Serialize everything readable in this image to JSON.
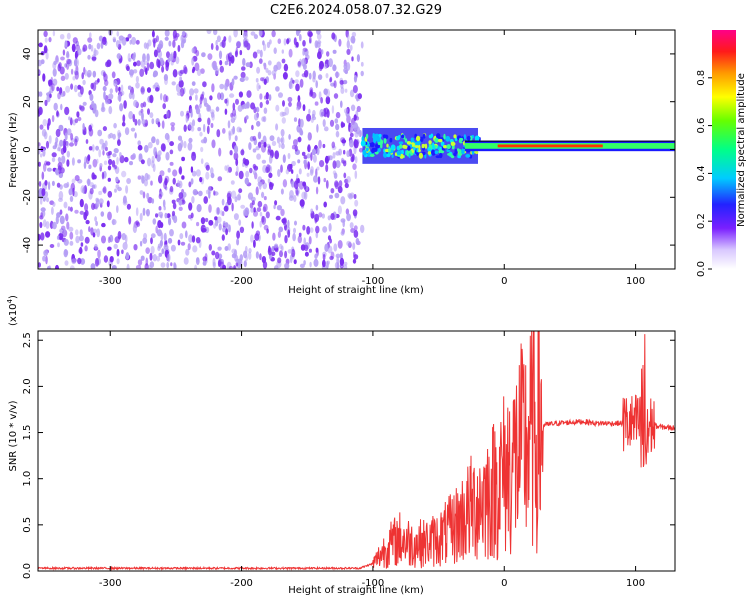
{
  "title": "C2E6.2024.058.07.32.G29",
  "colors": {
    "spectrum_sparse": "#b39cf5",
    "spectrum_dense": "#7a2df0",
    "snr_line": "#ee3333"
  },
  "chart_data": [
    {
      "type": "heatmap",
      "title": "C2E6.2024.058.07.32.G29",
      "xlabel": "Height of straight line (km)",
      "ylabel": "Frequency (Hz)",
      "xlim": [
        -355,
        130
      ],
      "ylim": [
        -50,
        50
      ],
      "xticks": [
        -300,
        -200,
        -100,
        0,
        100
      ],
      "yticks": [
        -40,
        -20,
        0,
        20,
        40
      ],
      "grid": false,
      "regions": [
        {
          "x_range": [
            -355,
            -108
          ],
          "description": "broadband noise across all frequencies"
        },
        {
          "x_range": [
            -108,
            -30
          ],
          "freq_range": [
            -5,
            8
          ],
          "amplitude": [
            0.3,
            0.6
          ]
        },
        {
          "x_range": [
            -30,
            130
          ],
          "frequency": 1.5,
          "amplitude": [
            0.8,
            1.0
          ]
        }
      ],
      "colorbar": {
        "label": "Normalized spectral amplitude",
        "range": [
          0.0,
          1.0
        ],
        "ticks": [
          "0.0",
          "0.2",
          "0.4",
          "0.6",
          "0.8"
        ]
      }
    },
    {
      "type": "line",
      "xlabel": "Height of straight line (km)",
      "ylabel": "SNR (10 * v/v)",
      "ylabel_exp": "(x10",
      "ylabel_exp_power": "4",
      "ylabel_exp_close": ")",
      "xlim": [
        -355,
        130
      ],
      "ylim": [
        0,
        2.6
      ],
      "xticks": [
        -300,
        -200,
        -100,
        0,
        100
      ],
      "yticks": [
        "0.0",
        "0.5",
        "1.0",
        "1.5",
        "2.0",
        "2.5"
      ],
      "grid": false,
      "series": [
        {
          "x": [
            -355,
            -300,
            -250,
            -200,
            -150,
            -110,
            -100,
            -90,
            -80,
            -70,
            -60,
            -50,
            -40,
            -30,
            -20,
            -10,
            0,
            10,
            20,
            30,
            40,
            50,
            60,
            70,
            80,
            90,
            100,
            105,
            108,
            110,
            112,
            115,
            120,
            130
          ],
          "y": [
            0.03,
            0.03,
            0.03,
            0.03,
            0.03,
            0.03,
            0.08,
            0.25,
            0.35,
            0.3,
            0.3,
            0.35,
            0.45,
            0.6,
            0.75,
            0.85,
            1.05,
            1.25,
            1.45,
            1.58,
            1.6,
            1.61,
            1.62,
            1.6,
            1.6,
            1.6,
            1.58,
            1.6,
            1.5,
            1.55,
            1.58,
            1.57,
            1.56,
            1.55
          ]
        }
      ]
    }
  ]
}
